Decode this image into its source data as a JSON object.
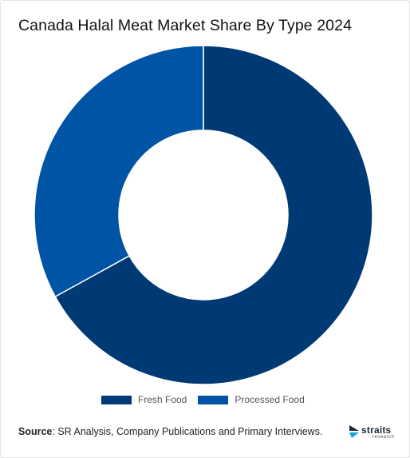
{
  "title": "Canada Halal Meat Market Share By Type 2024",
  "colors": {
    "fresh": "#003a75",
    "processed": "#0054a6",
    "background": "#ffffff"
  },
  "chart_data": {
    "type": "pie",
    "variant": "donut",
    "title": "Canada Halal Meat Market Share By Type 2024",
    "categories": [
      "Fresh Food",
      "Processed Food"
    ],
    "values": [
      67,
      33
    ],
    "legend_position": "bottom"
  },
  "legend": {
    "items": [
      {
        "label": "Fresh Food",
        "color": "#003a75"
      },
      {
        "label": "Processed Food",
        "color": "#0054a6"
      }
    ]
  },
  "source": {
    "label": "Source",
    "text": ": SR Analysis, Company Publications and Primary Interviews."
  },
  "logo": {
    "word": "straits",
    "sub": "research",
    "icon": "straits-logo-icon"
  }
}
